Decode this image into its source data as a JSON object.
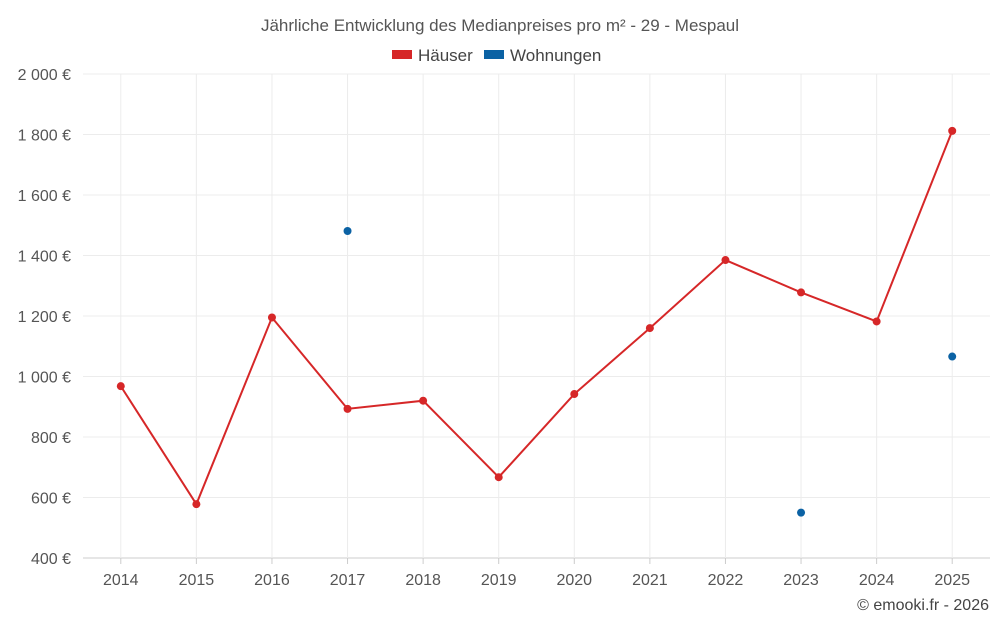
{
  "chart_data": {
    "type": "line",
    "title": "Jährliche Entwicklung des Medianpreises pro m² - 29 - Mespaul",
    "categories": [
      "2014",
      "2015",
      "2016",
      "2017",
      "2018",
      "2019",
      "2020",
      "2021",
      "2022",
      "2023",
      "2024",
      "2025"
    ],
    "ylim": [
      400,
      2000
    ],
    "y_ticks": [
      400,
      600,
      800,
      1000,
      1200,
      1400,
      1600,
      1800,
      2000
    ],
    "y_tick_labels": [
      "400 €",
      "600 €",
      "800 €",
      "1 000 €",
      "1 200 €",
      "1 400 €",
      "1 600 €",
      "1 800 €",
      "2 000 €"
    ],
    "grid": true,
    "legend_position": "top-center",
    "series": [
      {
        "name": "Häuser",
        "color": "#d62728",
        "line": true,
        "values": [
          968,
          578,
          1195,
          893,
          920,
          667,
          942,
          1160,
          1385,
          1278,
          1182,
          1812
        ]
      },
      {
        "name": "Wohnungen",
        "color": "#0b62a4",
        "line": false,
        "values": [
          null,
          null,
          null,
          1481,
          null,
          null,
          null,
          null,
          null,
          550,
          null,
          1066
        ]
      }
    ]
  },
  "credit": "© emooki.fr - 2026"
}
